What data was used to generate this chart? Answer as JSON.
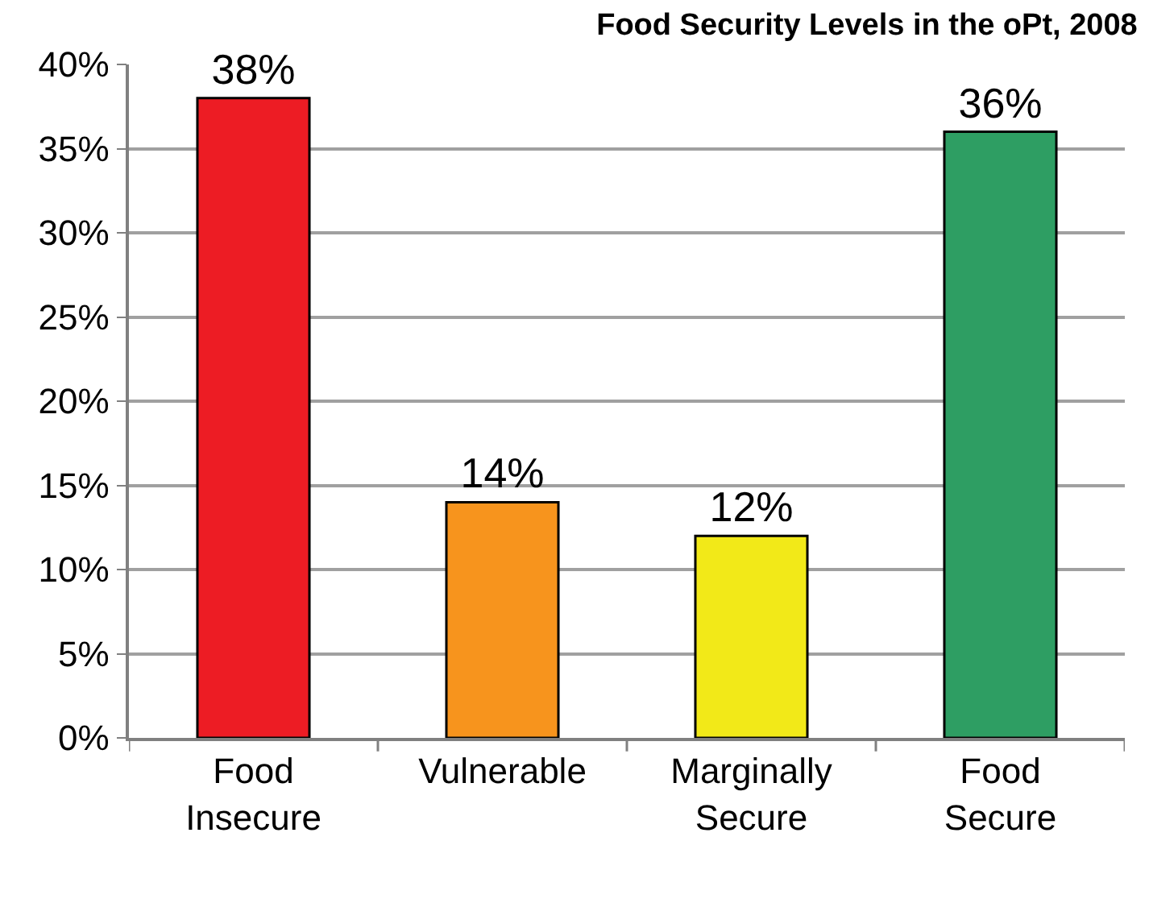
{
  "chart_data": {
    "type": "bar",
    "title": "Food Security Levels in the oPt, 2008",
    "categories": [
      "Food\nInsecure",
      "Vulnerable",
      "Marginally\nSecure",
      "Food\nSecure"
    ],
    "values": [
      38,
      14,
      12,
      36
    ],
    "colors": [
      "#ed1c24",
      "#f7941d",
      "#f2e918",
      "#2e9e63"
    ],
    "value_labels": [
      "38%",
      "14%",
      "12%",
      "36%"
    ],
    "ylim": [
      0,
      40
    ],
    "yticks": [
      {
        "value": 0,
        "label": "0%"
      },
      {
        "value": 5,
        "label": "5%"
      },
      {
        "value": 10,
        "label": "10%"
      },
      {
        "value": 15,
        "label": "15%"
      },
      {
        "value": 20,
        "label": "20%"
      },
      {
        "value": 25,
        "label": "25%"
      },
      {
        "value": 30,
        "label": "30%"
      },
      {
        "value": 35,
        "label": "35%"
      },
      {
        "value": 40,
        "label": "40%"
      }
    ],
    "grid": "y",
    "legend": false
  }
}
